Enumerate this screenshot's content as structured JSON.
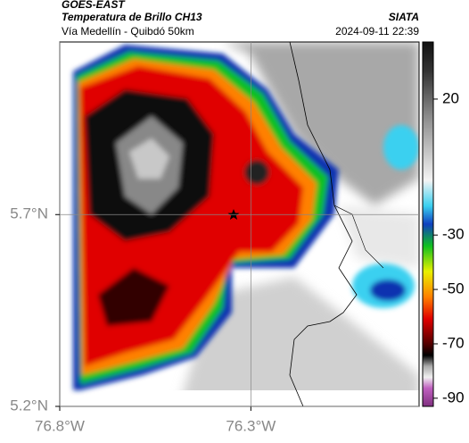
{
  "header": {
    "source": "GOES-EAST",
    "title": "Temperatura de Brillo CH13",
    "subtitle": "Vía Medellín - Quibdó 50km",
    "org": "SIATA",
    "datetime": "2024-09-11 22:39"
  },
  "map": {
    "xlim": [
      -76.8,
      -75.86
    ],
    "ylim": [
      5.2,
      6.15
    ],
    "xticks": [
      {
        "value": -76.8,
        "label": "76.8°W"
      },
      {
        "value": -76.3,
        "label": "76.3°W"
      }
    ],
    "yticks": [
      {
        "value": 5.2,
        "label": "5.2°N"
      },
      {
        "value": 5.7,
        "label": "5.7°N"
      }
    ],
    "grid": true
  },
  "colorbar": {
    "lim": [
      -93,
      41
    ],
    "ticks": [
      20,
      -30,
      -50,
      -70,
      -90
    ]
  }
}
